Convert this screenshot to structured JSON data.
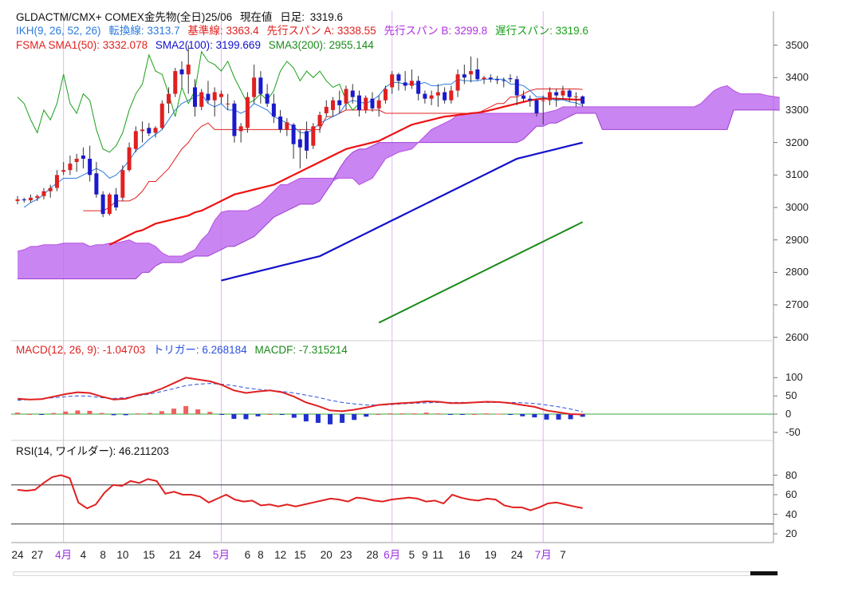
{
  "header": {
    "title": "GLDACTM/CMX+ COMEX金先物(全日)25/06",
    "price_label": "現在値",
    "interval_label": "日足:",
    "price_value": "3319.6"
  },
  "ikh": {
    "label": "IKH(9, 26, 52, 26)",
    "tenkan": "転換線: 3313.7",
    "kijun": "基準線: 3363.4",
    "span_a": "先行スパン A: 3338.55",
    "span_b": "先行スパン B: 3299.8",
    "chikou": "遅行スパン: 3319.6"
  },
  "fsma": {
    "label": "FSMA SMA1(50): 3332.078",
    "sma2": "SMA2(100): 3199.669",
    "sma3": "SMA3(200): 2955.144"
  },
  "macd": {
    "label": "MACD(12, 26, 9): -1.04703",
    "trigger": "トリガー: 6.268184",
    "macdf": "MACDF: -7.315214"
  },
  "rsi": {
    "label": "RSI(14, ワイルダー): 46.211203"
  },
  "colors": {
    "up": "#e02020",
    "down": "#1a1acc",
    "cloud": "#c070f0",
    "tenkan": "#2a7ae0",
    "kijun": "#e02020",
    "chikou": "#1aa01a",
    "sma1": "#ee1111",
    "sma2": "#1111cc",
    "sma3": "#1a8a1a",
    "month_text": "#9b30e0",
    "macd_line": "#e02020",
    "trigger_line": "#2a50e0",
    "rsi_line": "#e02020"
  },
  "chart_data": {
    "type": "candlestick",
    "price_axis": {
      "ticks": [
        3500,
        3400,
        3300,
        3200,
        3100,
        3000,
        2900,
        2800,
        2700,
        2600
      ]
    },
    "macd_axis": {
      "ticks": [
        100,
        50,
        0,
        -50
      ]
    },
    "rsi_axis": {
      "ticks": [
        80,
        60,
        40,
        20
      ],
      "bands": [
        70,
        30
      ]
    },
    "x_labels": [
      {
        "text": "24",
        "month": false
      },
      {
        "text": "27",
        "month": false
      },
      {
        "text": "4月",
        "month": true
      },
      {
        "text": "4",
        "month": false
      },
      {
        "text": "8",
        "month": false
      },
      {
        "text": "10",
        "month": false
      },
      {
        "text": "15",
        "month": false
      },
      {
        "text": "21",
        "month": false
      },
      {
        "text": "24",
        "month": false
      },
      {
        "text": "5月",
        "month": true
      },
      {
        "text": "6",
        "month": false
      },
      {
        "text": "8",
        "month": false
      },
      {
        "text": "12",
        "month": false
      },
      {
        "text": "15",
        "month": false
      },
      {
        "text": "20",
        "month": false
      },
      {
        "text": "23",
        "month": false
      },
      {
        "text": "28",
        "month": false
      },
      {
        "text": "6月",
        "month": true
      },
      {
        "text": "5",
        "month": false
      },
      {
        "text": "9",
        "month": false
      },
      {
        "text": "11",
        "month": false
      },
      {
        "text": "16",
        "month": false
      },
      {
        "text": "19",
        "month": false
      },
      {
        "text": "24",
        "month": false
      },
      {
        "text": "7月",
        "month": true
      },
      {
        "text": "7",
        "month": false
      }
    ],
    "x_label_bars": [
      0,
      3,
      7,
      10,
      13,
      16,
      20,
      24,
      27,
      31,
      35,
      37,
      40,
      43,
      47,
      50,
      54,
      57,
      60,
      62,
      64,
      68,
      72,
      76,
      80,
      83
    ],
    "month_line_bars": [
      7,
      31,
      57,
      80
    ],
    "candles": [
      [
        3020,
        3035,
        3010,
        3025
      ],
      [
        3025,
        3030,
        3015,
        3022
      ],
      [
        3022,
        3040,
        3015,
        3030
      ],
      [
        3030,
        3040,
        3020,
        3035
      ],
      [
        3035,
        3060,
        3025,
        3050
      ],
      [
        3050,
        3070,
        3030,
        3060
      ],
      [
        3060,
        3115,
        3050,
        3100
      ],
      [
        3110,
        3140,
        3100,
        3115
      ],
      [
        3115,
        3160,
        3100,
        3135
      ],
      [
        3140,
        3165,
        3110,
        3150
      ],
      [
        3160,
        3185,
        3120,
        3150
      ],
      [
        3150,
        3190,
        3080,
        3100
      ],
      [
        3105,
        3140,
        3030,
        3040
      ],
      [
        3040,
        3050,
        2970,
        2980
      ],
      [
        2980,
        3045,
        2975,
        3040
      ],
      [
        3040,
        3060,
        2990,
        3000
      ],
      [
        3030,
        3130,
        3020,
        3115
      ],
      [
        3115,
        3200,
        3110,
        3185
      ],
      [
        3180,
        3250,
        3170,
        3235
      ],
      [
        3235,
        3265,
        3200,
        3240
      ],
      [
        3245,
        3260,
        3220,
        3228
      ],
      [
        3230,
        3250,
        3215,
        3245
      ],
      [
        3245,
        3330,
        3240,
        3320
      ],
      [
        3320,
        3370,
        3290,
        3350
      ],
      [
        3350,
        3430,
        3340,
        3420
      ],
      [
        3425,
        3450,
        3370,
        3410
      ],
      [
        3410,
        3500,
        3350,
        3440
      ],
      [
        3370,
        3395,
        3280,
        3310
      ],
      [
        3310,
        3365,
        3300,
        3355
      ],
      [
        3350,
        3390,
        3320,
        3330
      ],
      [
        3330,
        3370,
        3280,
        3355
      ],
      [
        3340,
        3360,
        3320,
        3350
      ],
      [
        3320,
        3350,
        3300,
        3320
      ],
      [
        3320,
        3330,
        3200,
        3220
      ],
      [
        3235,
        3260,
        3200,
        3250
      ],
      [
        3245,
        3355,
        3230,
        3340
      ],
      [
        3340,
        3440,
        3320,
        3400
      ],
      [
        3400,
        3420,
        3320,
        3350
      ],
      [
        3350,
        3380,
        3310,
        3320
      ],
      [
        3320,
        3350,
        3260,
        3280
      ],
      [
        3280,
        3300,
        3230,
        3240
      ],
      [
        3240,
        3275,
        3220,
        3262
      ],
      [
        3255,
        3260,
        3150,
        3195
      ],
      [
        3210,
        3240,
        3120,
        3185
      ],
      [
        3235,
        3265,
        3150,
        3175
      ],
      [
        3190,
        3260,
        3180,
        3250
      ],
      [
        3250,
        3295,
        3230,
        3285
      ],
      [
        3290,
        3330,
        3280,
        3310
      ],
      [
        3300,
        3340,
        3280,
        3330
      ],
      [
        3330,
        3360,
        3290,
        3315
      ],
      [
        3320,
        3375,
        3300,
        3365
      ],
      [
        3360,
        3380,
        3320,
        3340
      ],
      [
        3345,
        3360,
        3280,
        3300
      ],
      [
        3300,
        3345,
        3290,
        3338
      ],
      [
        3335,
        3355,
        3295,
        3305
      ],
      [
        3305,
        3345,
        3280,
        3330
      ],
      [
        3330,
        3375,
        3320,
        3365
      ],
      [
        3370,
        3420,
        3350,
        3410
      ],
      [
        3410,
        3415,
        3360,
        3390
      ],
      [
        3385,
        3420,
        3360,
        3375
      ],
      [
        3375,
        3425,
        3365,
        3390
      ],
      [
        3390,
        3405,
        3330,
        3350
      ],
      [
        3350,
        3360,
        3320,
        3335
      ],
      [
        3335,
        3360,
        3315,
        3345
      ],
      [
        3345,
        3380,
        3310,
        3355
      ],
      [
        3355,
        3370,
        3320,
        3330
      ],
      [
        3330,
        3375,
        3320,
        3360
      ],
      [
        3360,
        3425,
        3340,
        3410
      ],
      [
        3410,
        3440,
        3380,
        3400
      ],
      [
        3410,
        3465,
        3385,
        3420
      ],
      [
        3425,
        3460,
        3390,
        3395
      ],
      [
        3395,
        3405,
        3380,
        3400
      ],
      [
        3400,
        3410,
        3385,
        3395
      ],
      [
        3395,
        3405,
        3380,
        3392
      ],
      [
        3392,
        3400,
        3370,
        3390
      ],
      [
        3398,
        3410,
        3385,
        3395
      ],
      [
        3395,
        3405,
        3315,
        3345
      ],
      [
        3345,
        3360,
        3325,
        3335
      ],
      [
        3335,
        3345,
        3310,
        3330
      ],
      [
        3330,
        3335,
        3280,
        3290
      ],
      [
        3330,
        3345,
        3255,
        3330
      ],
      [
        3330,
        3370,
        3315,
        3355
      ],
      [
        3355,
        3365,
        3310,
        3345
      ],
      [
        3345,
        3375,
        3330,
        3360
      ],
      [
        3360,
        3365,
        3325,
        3340
      ],
      [
        3340,
        3355,
        3310,
        3342
      ],
      [
        3342,
        3345,
        3310,
        3319.6
      ]
    ],
    "tenkan": [
      3000,
      3015,
      3025,
      3040,
      3060,
      3075,
      3090,
      3090,
      3090,
      3100,
      3110,
      3120,
      3110,
      3090,
      3100,
      3120,
      3145,
      3175,
      3190,
      3210,
      3225,
      3240,
      3270,
      3300,
      3320,
      3330,
      3340,
      3350,
      3320,
      3310,
      3320,
      3300,
      3300,
      3290,
      3300,
      3320,
      3310,
      3300,
      3280,
      3270,
      3260,
      3250,
      3230,
      3230,
      3240,
      3260,
      3270,
      3280,
      3290,
      3320,
      3330,
      3325,
      3320,
      3330,
      3345,
      3370,
      3385,
      3385,
      3380,
      3380,
      3380,
      3385,
      3375,
      3375,
      3380,
      3380,
      3395,
      3390,
      3390,
      3390,
      3395,
      3395,
      3395,
      3395,
      3380,
      3380,
      3375,
      3360,
      3340,
      3340,
      3335,
      3330,
      3332,
      3325,
      3322,
      3313.7
    ],
    "kijun": [
      2990,
      2990,
      2990,
      2990,
      3000,
      3020,
      3020,
      3020,
      3030,
      3050,
      3080,
      3080,
      3100,
      3120,
      3150,
      3180,
      3200,
      3230,
      3250,
      3260,
      3240,
      3240,
      3240,
      3240,
      3240,
      3240,
      3240,
      3240,
      3240,
      3240,
      3240,
      3240,
      3240,
      3240,
      3240,
      3240,
      3240,
      3280,
      3280,
      3290,
      3300,
      3300,
      3300,
      3300,
      3300,
      3300,
      3290,
      3290,
      3290,
      3290,
      3290,
      3290,
      3290,
      3290,
      3290,
      3290,
      3290,
      3290,
      3290,
      3290,
      3290,
      3300,
      3310,
      3320,
      3320,
      3340,
      3340,
      3350,
      3360,
      3365,
      3365,
      3365,
      3365,
      3365,
      3365,
      3365,
      3363.4
    ],
    "chikou": [
      3340,
      3320,
      3270,
      3230,
      3300,
      3270,
      3320,
      3410,
      3320,
      3290,
      3350,
      3330,
      3240,
      3180,
      3170,
      3190,
      3230,
      3300,
      3350,
      3380,
      3470,
      3420,
      3410,
      3350,
      3280,
      3370,
      3320,
      3360,
      3480,
      3450,
      3440,
      3420,
      3450,
      3400,
      3360,
      3320,
      3330,
      3350,
      3330,
      3360,
      3420,
      3450,
      3430,
      3390,
      3420,
      3400,
      3420,
      3390,
      3370,
      3380,
      3330,
      3300,
      3319.6
    ],
    "span_a": [
      2865,
      2870,
      2880,
      2880,
      2885,
      2885,
      2885,
      2890,
      2890,
      2890,
      2890,
      2880,
      2885,
      2885,
      2890,
      2890,
      2895,
      2900,
      2890,
      2890,
      2890,
      2880,
      2860,
      2850,
      2850,
      2850,
      2860,
      2870,
      2900,
      2920,
      2960,
      2985,
      2990,
      2990,
      2990,
      2990,
      3000,
      3010,
      3030,
      3050,
      3070,
      3070,
      3080,
      3090,
      3090,
      3090,
      3090,
      3090,
      3090,
      3090,
      3090,
      3090,
      3070,
      3080,
      3090,
      3120,
      3150,
      3160,
      3170,
      3175,
      3180,
      3200,
      3220,
      3240,
      3250,
      3260,
      3270,
      3285,
      3290,
      3290,
      3290,
      3290,
      3290,
      3290,
      3290,
      3290,
      3290,
      3290,
      3290,
      3290,
      3290,
      3295,
      3300,
      3310,
      3310,
      3310,
      3310,
      3310,
      3310,
      3310,
      3310,
      3310,
      3310,
      3310,
      3310,
      3310,
      3310,
      3310,
      3310,
      3310,
      3310,
      3310,
      3310,
      3310,
      3320,
      3340,
      3360,
      3370,
      3375,
      3360,
      3350,
      3350,
      3350,
      3350,
      3345,
      3342,
      3338.55
    ],
    "span_b": [
      2780,
      2780,
      2780,
      2780,
      2780,
      2780,
      2780,
      2780,
      2780,
      2780,
      2780,
      2780,
      2780,
      2780,
      2780,
      2780,
      2780,
      2780,
      2780,
      2800,
      2800,
      2820,
      2830,
      2830,
      2830,
      2830,
      2840,
      2850,
      2850,
      2850,
      2860,
      2870,
      2880,
      2880,
      2890,
      2900,
      2910,
      2930,
      2950,
      2970,
      2980,
      2990,
      3000,
      3010,
      3010,
      3010,
      3020,
      3050,
      3080,
      3120,
      3150,
      3170,
      3180,
      3180,
      3190,
      3200,
      3200,
      3200,
      3200,
      3200,
      3200,
      3200,
      3200,
      3200,
      3200,
      3200,
      3200,
      3200,
      3200,
      3200,
      3200,
      3200,
      3200,
      3200,
      3200,
      3200,
      3200,
      3210,
      3230,
      3250,
      3250,
      3260,
      3260,
      3270,
      3280,
      3290,
      3290,
      3290,
      3290,
      3240,
      3240,
      3240,
      3240,
      3240,
      3240,
      3240,
      3240,
      3240,
      3240,
      3240,
      3240,
      3240,
      3240,
      3240,
      3240,
      3240,
      3240,
      3240,
      3240,
      3300,
      3300,
      3300,
      3300,
      3300,
      3300,
      3300,
      3299.8
    ],
    "sma1": [
      2885,
      2895,
      2905,
      2915,
      2925,
      2930,
      2940,
      2950,
      2955,
      2960,
      2965,
      2970,
      2975,
      2985,
      2990,
      3000,
      3010,
      3020,
      3030,
      3040,
      3045,
      3050,
      3055,
      3060,
      3065,
      3070,
      3080,
      3090,
      3100,
      3110,
      3120,
      3130,
      3140,
      3150,
      3160,
      3170,
      3180,
      3185,
      3190,
      3195,
      3200,
      3205,
      3215,
      3225,
      3235,
      3245,
      3255,
      3260,
      3265,
      3270,
      3275,
      3280,
      3282,
      3285,
      3287,
      3290,
      3292,
      3295,
      3300,
      3305,
      3310,
      3315,
      3320,
      3325,
      3330,
      3333,
      3335,
      3335,
      3335,
      3334,
      3333,
      3332,
      3332.078
    ],
    "sma2": [
      2775,
      2780,
      2785,
      2790,
      2795,
      2800,
      2805,
      2810,
      2815,
      2820,
      2825,
      2830,
      2835,
      2840,
      2845,
      2850,
      2860,
      2870,
      2880,
      2890,
      2900,
      2910,
      2920,
      2930,
      2940,
      2950,
      2960,
      2970,
      2980,
      2990,
      3000,
      3010,
      3020,
      3030,
      3040,
      3050,
      3060,
      3070,
      3080,
      3090,
      3100,
      3110,
      3120,
      3130,
      3140,
      3150,
      3155,
      3160,
      3165,
      3170,
      3175,
      3180,
      3185,
      3190,
      3195,
      3199.669
    ],
    "sma3": [
      2645,
      2655,
      2665,
      2675,
      2685,
      2695,
      2705,
      2715,
      2725,
      2735,
      2745,
      2755,
      2765,
      2775,
      2785,
      2795,
      2805,
      2815,
      2825,
      2835,
      2845,
      2855,
      2865,
      2875,
      2885,
      2895,
      2905,
      2915,
      2925,
      2935,
      2945,
      2955.144
    ],
    "macd_line": [
      42,
      40,
      41,
      48,
      55,
      60,
      58,
      48,
      40,
      42,
      52,
      58,
      70,
      85,
      100,
      95,
      90,
      80,
      65,
      58,
      62,
      65,
      60,
      48,
      32,
      22,
      10,
      8,
      12,
      18,
      25,
      28,
      30,
      32,
      35,
      34,
      30,
      30,
      32,
      34,
      33,
      30,
      25,
      20,
      10,
      5,
      0,
      -1.04703
    ],
    "trigger_line": [
      38,
      40,
      42,
      45,
      48,
      50,
      49,
      45,
      43,
      45,
      50,
      55,
      62,
      70,
      78,
      82,
      84,
      82,
      78,
      72,
      68,
      65,
      62,
      58,
      52,
      46,
      38,
      32,
      28,
      25,
      25,
      26,
      28,
      30,
      31,
      32,
      32,
      32,
      32,
      32,
      32,
      32,
      31,
      29,
      25,
      20,
      14,
      6.268184
    ],
    "rsi": [
      65,
      64,
      65,
      72,
      78,
      80,
      77,
      52,
      46,
      50,
      62,
      70,
      69,
      74,
      72,
      76,
      74,
      61,
      63,
      60,
      60,
      58,
      52,
      56,
      60,
      55,
      53,
      54,
      49,
      50,
      48,
      50,
      48,
      50,
      52,
      54,
      56,
      55,
      53,
      57,
      56,
      54,
      53,
      55,
      56,
      57,
      56,
      53,
      54,
      51,
      60,
      57,
      55,
      54,
      56,
      55,
      49,
      47,
      47,
      44,
      47,
      51,
      52,
      50,
      48,
      46.211203
    ]
  }
}
